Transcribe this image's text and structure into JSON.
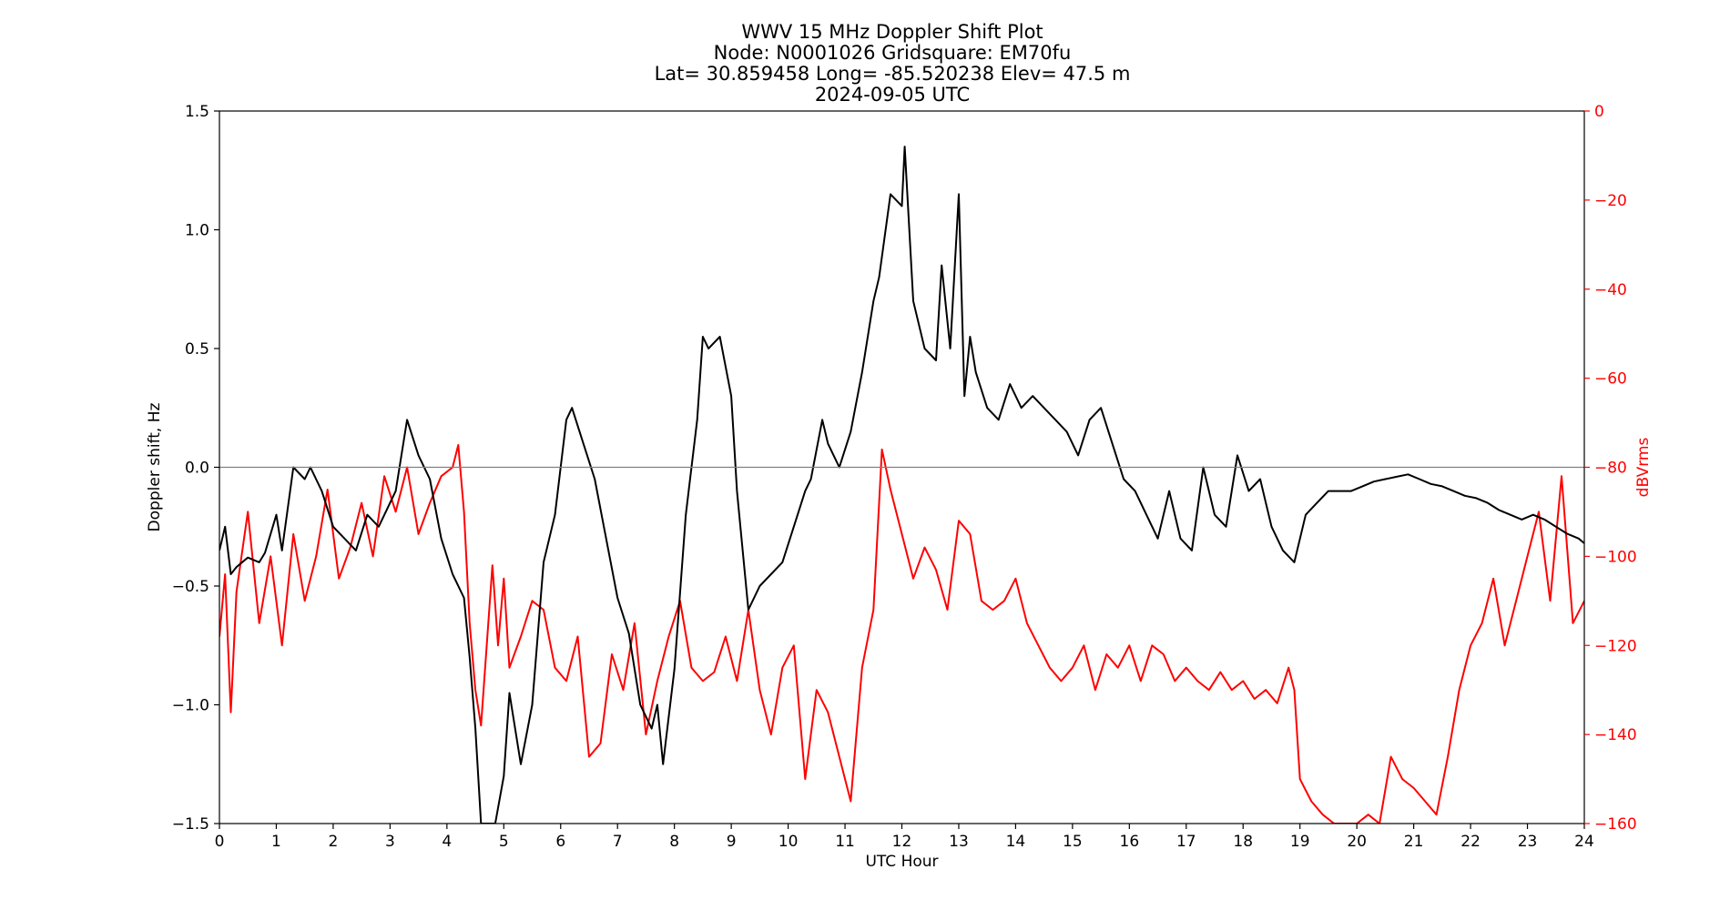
{
  "chart_data": {
    "type": "line",
    "title_lines": [
      "WWV 15 MHz Doppler Shift Plot",
      "Node:  N0001026     Gridsquare:  EM70fu",
      "Lat= 30.859458    Long= -85.520238    Elev= 47.5 m",
      "2024-09-05  UTC"
    ],
    "xlabel": "UTC Hour",
    "ylabel": "Doppler shift, Hz",
    "ylabel_right": "dBVrms",
    "xlim": [
      0,
      24
    ],
    "ylim": [
      -1.5,
      1.5
    ],
    "ylim_right": [
      -160,
      0
    ],
    "x_ticks": [
      0,
      1,
      2,
      3,
      4,
      5,
      6,
      7,
      8,
      9,
      10,
      11,
      12,
      13,
      14,
      15,
      16,
      17,
      18,
      19,
      20,
      21,
      22,
      23,
      24
    ],
    "y_ticks": [
      -1.5,
      -1.0,
      -0.5,
      0.0,
      0.5,
      1.0,
      1.5
    ],
    "y_tick_labels": [
      "−1.5",
      "−1.0",
      "−0.5",
      "0.0",
      "0.5",
      "1.0",
      "1.5"
    ],
    "y_ticks_right": [
      -160,
      -140,
      -120,
      -100,
      -80,
      -60,
      -40,
      -20,
      0
    ],
    "y_tick_labels_right": [
      "−160",
      "−140",
      "−120",
      "−100",
      "−80",
      "−60",
      "−40",
      "−20",
      "0"
    ],
    "grid": false,
    "reference_line_y": 0.0,
    "colors": {
      "doppler": "#000000",
      "power": "#ff0000",
      "reference": "#808080"
    },
    "series": [
      {
        "axis": "left",
        "x": [
          0,
          0.1,
          0.2,
          0.3,
          0.5,
          0.7,
          0.8,
          1.0,
          1.1,
          1.3,
          1.5,
          1.6,
          1.8,
          2.0,
          2.2,
          2.4,
          2.6,
          2.8,
          3.0,
          3.1,
          3.3,
          3.5,
          3.7,
          3.9,
          4.1,
          4.3,
          4.4,
          4.5,
          4.6,
          4.75,
          4.85,
          5.0,
          5.1,
          5.3,
          5.5,
          5.7,
          5.9,
          6.1,
          6.2,
          6.4,
          6.6,
          6.8,
          7.0,
          7.2,
          7.4,
          7.6,
          7.7,
          7.8,
          8.0,
          8.2,
          8.4,
          8.5,
          8.6,
          8.8,
          9.0,
          9.1,
          9.3,
          9.5,
          9.7,
          9.9,
          10.1,
          10.3,
          10.4,
          10.6,
          10.7,
          10.9,
          11.1,
          11.3,
          11.5,
          11.6,
          11.8,
          12.0,
          12.05,
          12.2,
          12.4,
          12.6,
          12.7,
          12.85,
          13.0,
          13.1,
          13.2,
          13.3,
          13.5,
          13.7,
          13.9,
          14.1,
          14.3,
          14.5,
          14.7,
          14.9,
          15.1,
          15.3,
          15.5,
          15.7,
          15.9,
          16.1,
          16.3,
          16.5,
          16.7,
          16.9,
          17.1,
          17.3,
          17.5,
          17.7,
          17.9,
          18.1,
          18.3,
          18.5,
          18.7,
          18.9,
          19.1,
          19.3,
          19.5,
          19.7,
          19.9,
          20.1,
          20.3,
          20.5,
          20.7,
          20.9,
          21.1,
          21.3,
          21.5,
          21.7,
          21.9,
          22.1,
          22.3,
          22.5,
          22.7,
          22.9,
          23.1,
          23.3,
          23.5,
          23.7,
          23.9,
          24.0
        ],
        "values": [
          -0.35,
          -0.25,
          -0.45,
          -0.42,
          -0.38,
          -0.4,
          -0.36,
          -0.2,
          -0.35,
          0.0,
          -0.05,
          0.0,
          -0.1,
          -0.25,
          -0.3,
          -0.35,
          -0.2,
          -0.25,
          -0.15,
          -0.1,
          0.2,
          0.05,
          -0.05,
          -0.3,
          -0.45,
          -0.55,
          -0.8,
          -1.1,
          -1.5,
          -1.5,
          -1.5,
          -1.3,
          -0.95,
          -1.25,
          -1.0,
          -0.4,
          -0.2,
          0.2,
          0.25,
          0.1,
          -0.05,
          -0.3,
          -0.55,
          -0.7,
          -1.0,
          -1.1,
          -1.0,
          -1.25,
          -0.85,
          -0.2,
          0.2,
          0.55,
          0.5,
          0.55,
          0.3,
          -0.1,
          -0.6,
          -0.5,
          -0.45,
          -0.4,
          -0.25,
          -0.1,
          -0.05,
          0.2,
          0.1,
          0.0,
          0.15,
          0.4,
          0.7,
          0.8,
          1.15,
          1.1,
          1.35,
          0.7,
          0.5,
          0.45,
          0.85,
          0.5,
          1.15,
          0.3,
          0.55,
          0.4,
          0.25,
          0.2,
          0.35,
          0.25,
          0.3,
          0.25,
          0.2,
          0.15,
          0.05,
          0.2,
          0.25,
          0.1,
          -0.05,
          -0.1,
          -0.2,
          -0.3,
          -0.1,
          -0.3,
          -0.35,
          0.0,
          -0.2,
          -0.25,
          0.05,
          -0.1,
          -0.05,
          -0.25,
          -0.35,
          -0.4,
          -0.2,
          -0.15,
          -0.1,
          -0.1,
          -0.1,
          -0.08,
          -0.06,
          -0.05,
          -0.04,
          -0.03,
          -0.05,
          -0.07,
          -0.08,
          -0.1,
          -0.12,
          -0.13,
          -0.15,
          -0.18,
          -0.2,
          -0.22,
          -0.2,
          -0.22,
          -0.25,
          -0.28,
          -0.3,
          -0.32
        ]
      },
      {
        "axis": "right",
        "x": [
          0,
          0.1,
          0.2,
          0.3,
          0.5,
          0.7,
          0.9,
          1.1,
          1.3,
          1.5,
          1.7,
          1.9,
          2.1,
          2.3,
          2.5,
          2.7,
          2.9,
          3.1,
          3.3,
          3.5,
          3.7,
          3.9,
          4.1,
          4.2,
          4.3,
          4.4,
          4.5,
          4.6,
          4.8,
          4.9,
          5.0,
          5.1,
          5.3,
          5.5,
          5.7,
          5.9,
          6.1,
          6.3,
          6.5,
          6.7,
          6.9,
          7.1,
          7.3,
          7.5,
          7.7,
          7.9,
          8.1,
          8.3,
          8.5,
          8.7,
          8.9,
          9.1,
          9.3,
          9.5,
          9.7,
          9.9,
          10.1,
          10.3,
          10.5,
          10.7,
          10.9,
          11.1,
          11.3,
          11.5,
          11.65,
          11.8,
          12.0,
          12.2,
          12.4,
          12.6,
          12.8,
          13.0,
          13.2,
          13.4,
          13.6,
          13.8,
          14.0,
          14.2,
          14.4,
          14.6,
          14.8,
          15.0,
          15.2,
          15.4,
          15.6,
          15.8,
          16.0,
          16.2,
          16.4,
          16.6,
          16.8,
          17.0,
          17.2,
          17.4,
          17.6,
          17.8,
          18.0,
          18.2,
          18.4,
          18.6,
          18.8,
          18.9,
          19.0,
          19.2,
          19.4,
          19.6,
          19.8,
          20.0,
          20.2,
          20.4,
          20.6,
          20.8,
          21.0,
          21.2,
          21.4,
          21.6,
          21.8,
          22.0,
          22.2,
          22.4,
          22.6,
          22.8,
          23.0,
          23.2,
          23.4,
          23.6,
          23.8,
          24.0
        ],
        "values": [
          -118,
          -104,
          -135,
          -108,
          -90,
          -115,
          -100,
          -120,
          -95,
          -110,
          -100,
          -85,
          -105,
          -98,
          -88,
          -100,
          -82,
          -90,
          -80,
          -95,
          -88,
          -82,
          -80,
          -75,
          -90,
          -115,
          -130,
          -138,
          -102,
          -120,
          -105,
          -125,
          -118,
          -110,
          -112,
          -125,
          -128,
          -118,
          -145,
          -142,
          -122,
          -130,
          -115,
          -140,
          -128,
          -118,
          -110,
          -125,
          -128,
          -126,
          -118,
          -128,
          -112,
          -130,
          -140,
          -125,
          -120,
          -150,
          -130,
          -135,
          -145,
          -155,
          -125,
          -112,
          -76,
          -85,
          -95,
          -105,
          -98,
          -103,
          -112,
          -92,
          -95,
          -110,
          -112,
          -110,
          -105,
          -115,
          -120,
          -125,
          -128,
          -125,
          -120,
          -130,
          -122,
          -125,
          -120,
          -128,
          -120,
          -122,
          -128,
          -125,
          -128,
          -130,
          -126,
          -130,
          -128,
          -132,
          -130,
          -133,
          -125,
          -130,
          -150,
          -155,
          -158,
          -160,
          -160,
          -160,
          -158,
          -160,
          -145,
          -150,
          -152,
          -155,
          -158,
          -145,
          -130,
          -120,
          -115,
          -105,
          -120,
          -110,
          -100,
          -90,
          -110,
          -82,
          -115,
          -110
        ]
      }
    ]
  }
}
